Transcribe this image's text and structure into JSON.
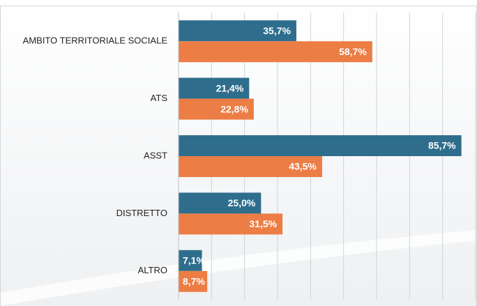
{
  "chart_data": {
    "type": "barh",
    "categories": [
      "AMBITO TERRITORIALE SOCIALE",
      "ATS",
      "ASST",
      "DISTRETTO",
      "ALTRO"
    ],
    "series": [
      {
        "color": "#2e6e8c",
        "values": [
          35.7,
          21.4,
          85.7,
          25.0,
          7.1
        ],
        "value_labels": [
          "35,7%",
          "21,4%",
          "85,7%",
          "25,0%",
          "7,1%"
        ]
      },
      {
        "color": "#ec7d45",
        "values": [
          58.7,
          22.8,
          43.5,
          31.5,
          8.7
        ],
        "value_labels": [
          "58,7%",
          "22,8%",
          "43,5%",
          "31,5%",
          "8,7%"
        ]
      }
    ],
    "xlim": [
      0,
      90
    ],
    "xticks": [
      0,
      10,
      20,
      30,
      40,
      50,
      60,
      70,
      80,
      90
    ],
    "grid": true
  }
}
